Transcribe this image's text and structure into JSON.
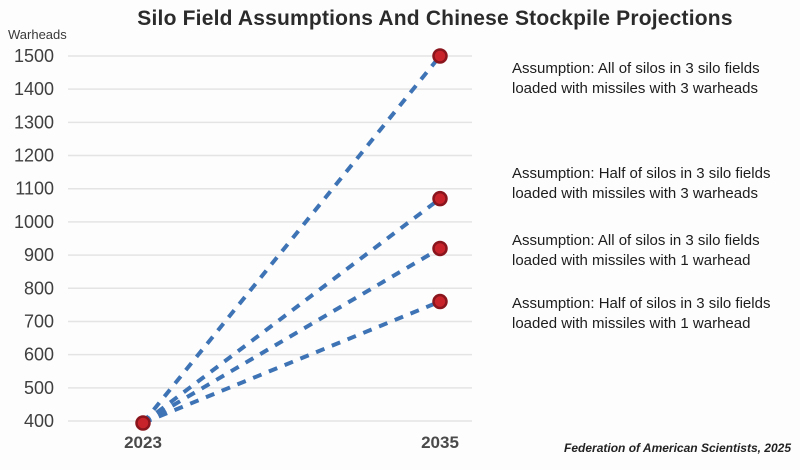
{
  "title": "Silo Field Assumptions And Chinese Stockpile Projections",
  "y_axis_label": "Warheads",
  "attribution": "Federation of American Scientists, 2025",
  "annotations": [
    {
      "line1": "Assumption: All of silos in 3 silo fields",
      "line2": "loaded with missiles with 3 warheads"
    },
    {
      "line1": "Assumption: Half of silos in 3 silo fields",
      "line2": "loaded with missiles with 3 warheads"
    },
    {
      "line1": "Assumption: All of silos in 3 silo fields",
      "line2": "loaded with missiles with 1 warhead"
    },
    {
      "line1": "Assumption: Half of silos in 3 silo fields",
      "line2": "loaded with missiles with 1 warhead"
    }
  ],
  "chart_data": {
    "type": "line",
    "title": "Silo Field Assumptions And Chinese Stockpile Projections",
    "ylabel": "Warheads",
    "xlabel": "",
    "x": [
      "2023",
      "2035"
    ],
    "ylim": [
      400,
      1500
    ],
    "ytick_step": 100,
    "grid": true,
    "line_style": "dashed",
    "legend_position": "right-annotations",
    "colors": {
      "line": "#3e74b5",
      "marker_fill": "#c8222b",
      "marker_stroke": "#8a151d",
      "grid": "#e4e4e4",
      "tick_text": "#3f3f3f"
    },
    "series": [
      {
        "name": "All of silos in 3 silo fields loaded with missiles with 3 warheads",
        "values": [
          400,
          1500
        ]
      },
      {
        "name": "Half of silos in 3 silo fields loaded with missiles with 3 warheads",
        "values": [
          400,
          1070
        ]
      },
      {
        "name": "All of silos in 3 silo fields loaded with missiles with 1 warhead",
        "values": [
          400,
          920
        ]
      },
      {
        "name": "Half of silos in 3 silo fields loaded with missiles with 1 warhead",
        "values": [
          400,
          760
        ]
      }
    ],
    "source": "Federation of American Scientists, 2025"
  }
}
